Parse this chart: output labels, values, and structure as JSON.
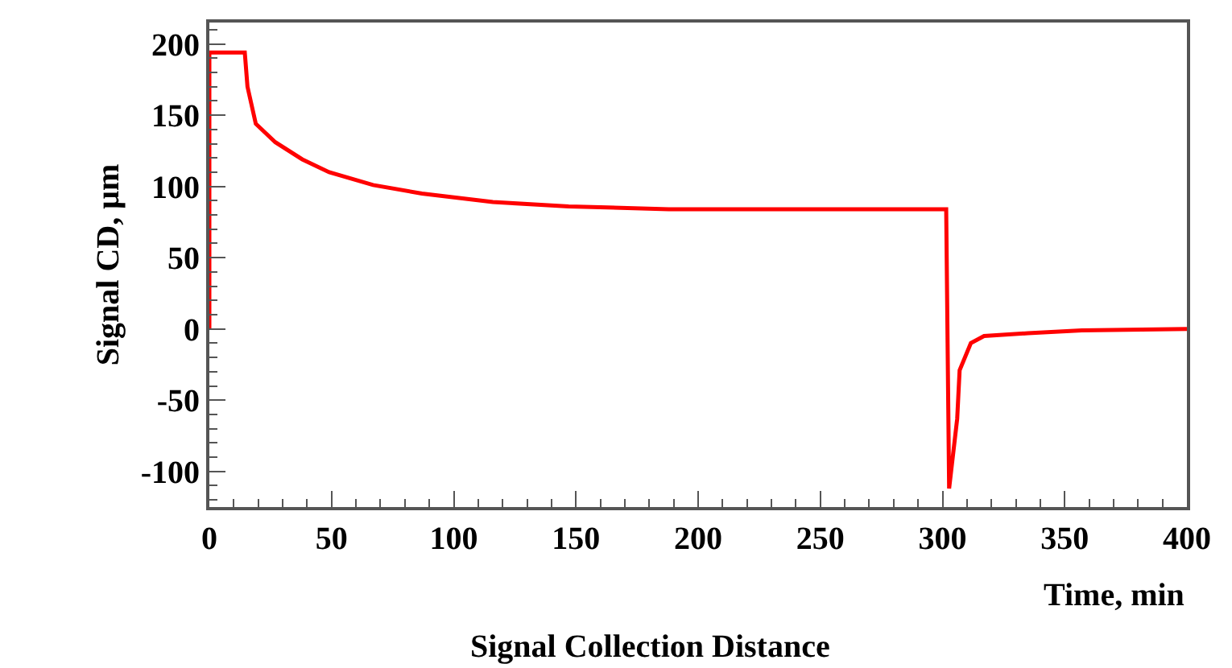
{
  "chart_data": {
    "type": "line",
    "xlabel": "Time, min",
    "ylabel": "Signal CD, μm",
    "annotations": [
      "Signal Collection Distance"
    ],
    "series": [
      {
        "color": "#ff0000",
        "x": [
          0,
          0,
          14.5,
          15.6,
          19,
          27,
          38,
          49,
          67,
          87,
          116,
          147,
          188,
          250,
          301.5,
          302.7,
          306,
          307,
          311.6,
          317,
          335,
          357,
          400
        ],
        "values": [
          0,
          194,
          194,
          170,
          144,
          131,
          119,
          110,
          101,
          95,
          89,
          86,
          84,
          84,
          84,
          -112,
          -63,
          -29,
          -10,
          -5,
          -3,
          -1,
          0
        ]
      }
    ],
    "xlim": [
      0,
      400
    ],
    "xticks": [
      0,
      50,
      100,
      150,
      200,
      250,
      300,
      350,
      400
    ],
    "ylim": [
      -125,
      215
    ],
    "yticks": [
      -100,
      -50,
      0,
      50,
      100,
      150,
      200
    ],
    "legend": false,
    "marker": "none",
    "line_style": "solid"
  }
}
